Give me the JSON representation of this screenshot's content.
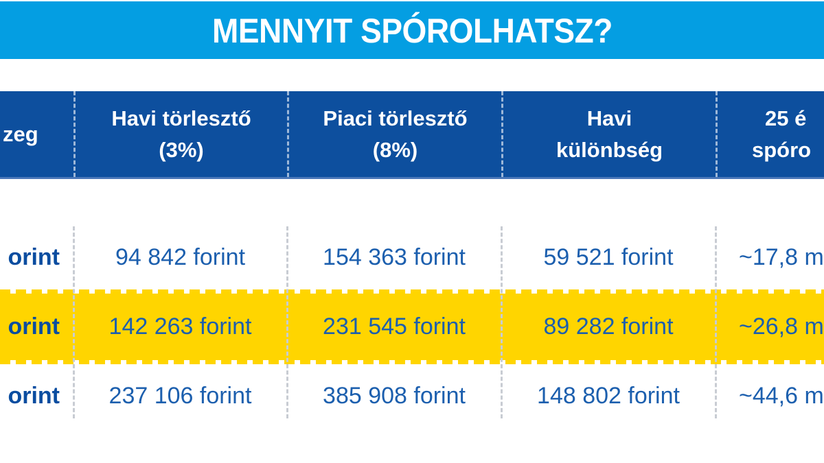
{
  "title_bar": {
    "text": "MENNYIT SPÓROLHATSZ?"
  },
  "table": {
    "headers": [
      {
        "line1": "zeg"
      },
      {
        "line1": "Havi törlesztő",
        "line2": "(3%)"
      },
      {
        "line1": "Piaci törlesztő",
        "line2": "(8%)"
      },
      {
        "line1": "Havi",
        "line2": "különbség"
      },
      {
        "line1": "25 é",
        "line2": "spóro"
      }
    ]
  },
  "chart_data": {
    "type": "table",
    "title": "MENNYIT SPÓROLHATSZ?",
    "columns": [
      "zeg",
      "Havi törlesztő (3%)",
      "Piaci törlesztő (8%)",
      "Havi különbség",
      "25 é spóro"
    ],
    "rows": [
      [
        "orint",
        "94 842 forint",
        "154 363 forint",
        "59 521 forint",
        "~17,8 m"
      ],
      [
        "orint",
        "142 263 forint",
        "231 545 forint",
        "89 282 forint",
        "~26,8 m"
      ],
      [
        "orint",
        "237 106 forint",
        "385 908 forint",
        "148 802 forint",
        "~44,6 m"
      ]
    ],
    "highlighted_row_index": 1
  },
  "colors": {
    "title_bar_bg": "#049EE2",
    "header_bg": "#0D4F9E",
    "header_text": "#FFFFFF",
    "highlight_row_bg": "#FFD500",
    "value_text": "#1C5FAE",
    "loan_column_text": "#0A4DA0",
    "separator": "#C8CCD3"
  }
}
